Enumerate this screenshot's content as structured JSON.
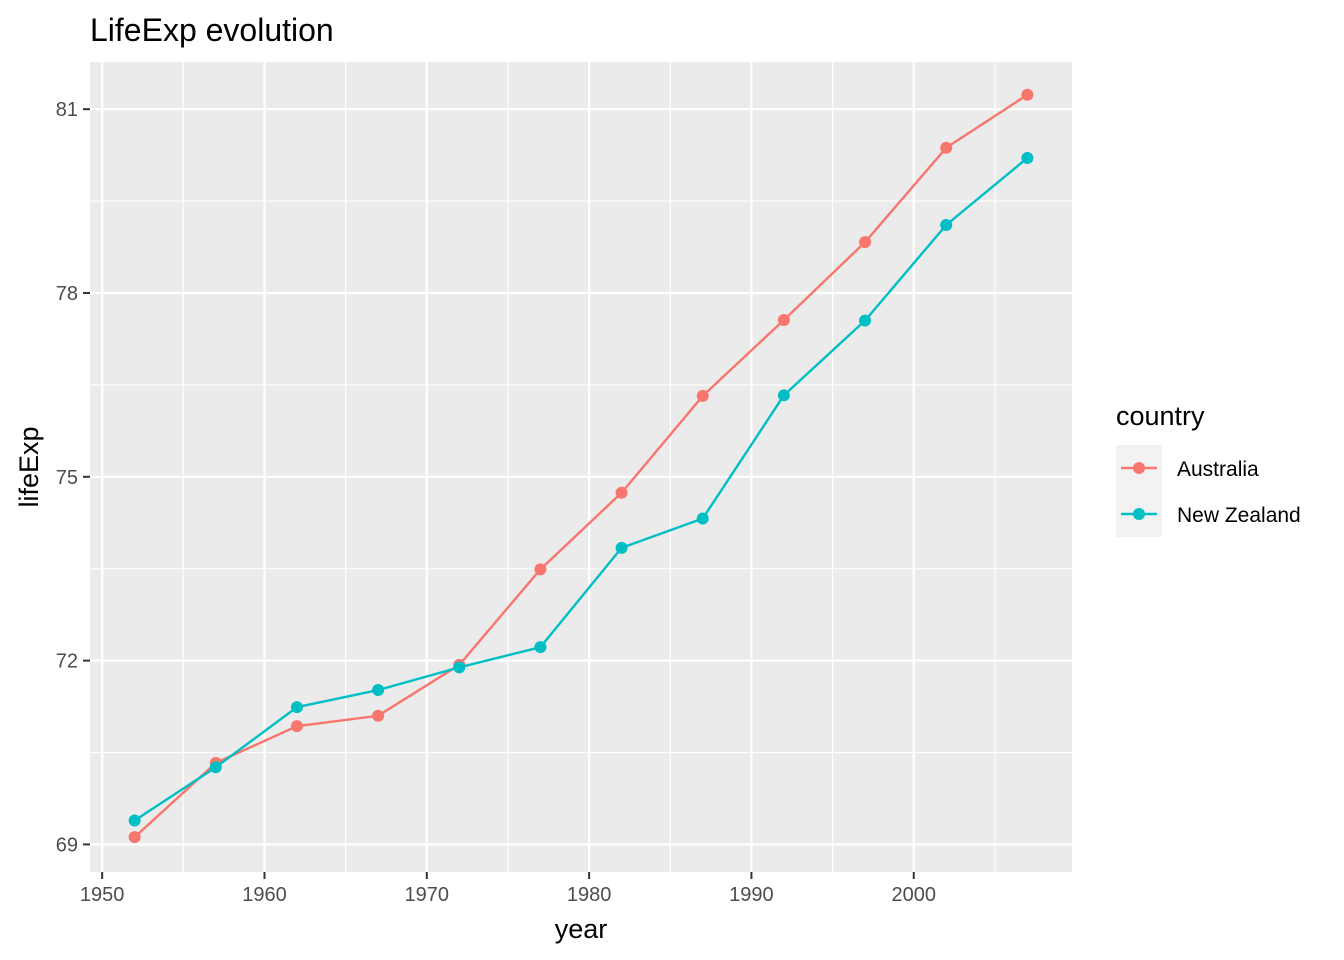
{
  "chart_data": {
    "type": "line",
    "title": "LifeExp evolution",
    "xlabel": "year",
    "ylabel": "lifeExp",
    "x": [
      1952,
      1957,
      1962,
      1967,
      1972,
      1977,
      1982,
      1987,
      1992,
      1997,
      2002,
      2007
    ],
    "xlim": [
      1949.25,
      2009.75
    ],
    "ylim": [
      68.55,
      81.77
    ],
    "xticks": [
      {
        "value": 1950,
        "label": "1950"
      },
      {
        "value": 1960,
        "label": "1960"
      },
      {
        "value": 1970,
        "label": "1970"
      },
      {
        "value": 1980,
        "label": "1980"
      },
      {
        "value": 1990,
        "label": "1990"
      },
      {
        "value": 2000,
        "label": "2000"
      }
    ],
    "yticks": [
      {
        "value": 69,
        "label": "69"
      },
      {
        "value": 72,
        "label": "72"
      },
      {
        "value": 75,
        "label": "75"
      },
      {
        "value": 78,
        "label": "78"
      },
      {
        "value": 81,
        "label": "81"
      }
    ],
    "grid": true,
    "legend": {
      "title": "country",
      "position": "right"
    },
    "series": [
      {
        "name": "Australia",
        "color": "#F8766D",
        "values": [
          69.12,
          70.33,
          70.93,
          71.1,
          71.93,
          73.49,
          74.74,
          76.32,
          77.56,
          78.83,
          80.37,
          81.235
        ]
      },
      {
        "name": "New Zealand",
        "color": "#00BFC4",
        "values": [
          69.39,
          70.26,
          71.24,
          71.52,
          71.89,
          72.22,
          73.84,
          74.32,
          76.33,
          77.55,
          79.11,
          80.204
        ]
      }
    ],
    "panel_background": "#EBEBEB",
    "grid_color": "#FFFFFF",
    "tick_color": "#333333"
  }
}
